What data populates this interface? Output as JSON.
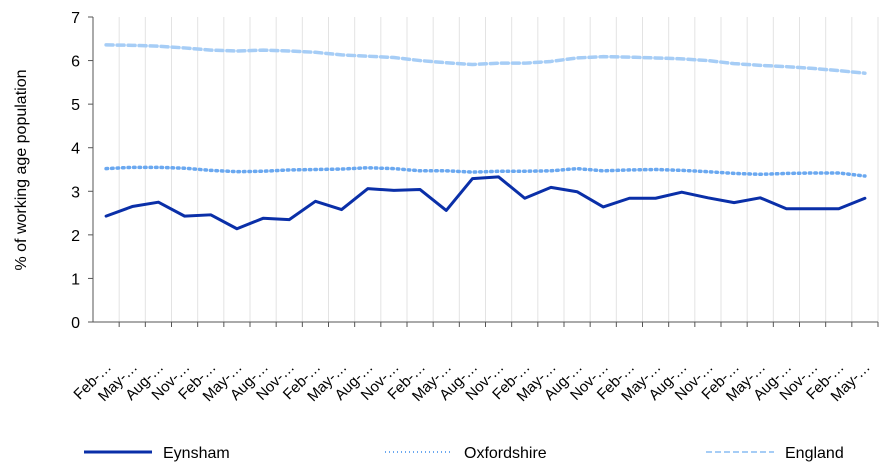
{
  "chart_data": {
    "type": "line",
    "ylabel": "% of working age population",
    "xlabel": "",
    "ylim": [
      0,
      7
    ],
    "yticks": [
      "0",
      "1",
      "2",
      "3",
      "4",
      "5",
      "6",
      "7"
    ],
    "grid": "vertical",
    "legend_position": "bottom",
    "categories": [
      "Feb-…",
      "May-…",
      "Aug-…",
      "Nov-…",
      "Feb-…",
      "May-…",
      "Aug-…",
      "Nov-…",
      "Feb-…",
      "May-…",
      "Aug-…",
      "Nov-…",
      "Feb-…",
      "May-…",
      "Aug-…",
      "Nov-…",
      "Feb-…",
      "May-…",
      "Aug-…",
      "Nov-…",
      "Feb-…",
      "May-…",
      "Aug-…",
      "Nov-…",
      "Feb-…",
      "May-…",
      "Aug-…",
      "Nov-…",
      "Feb-…",
      "May-…"
    ],
    "series": [
      {
        "name": "Eynsham",
        "color": "#0a2fa8",
        "style": "solid",
        "values": [
          2.43,
          2.65,
          2.75,
          2.43,
          2.46,
          2.14,
          2.38,
          2.35,
          2.77,
          2.58,
          3.06,
          3.02,
          3.04,
          2.56,
          3.29,
          3.33,
          2.84,
          3.09,
          2.99,
          2.64,
          2.84,
          2.84,
          2.98,
          2.85,
          2.74,
          2.85,
          2.6,
          2.6,
          2.6,
          2.84
        ]
      },
      {
        "name": "Oxfordshire",
        "color": "#6aa8f0",
        "style": "dotted",
        "values": [
          3.52,
          3.55,
          3.55,
          3.53,
          3.48,
          3.45,
          3.46,
          3.49,
          3.5,
          3.51,
          3.54,
          3.52,
          3.47,
          3.47,
          3.44,
          3.46,
          3.46,
          3.47,
          3.52,
          3.47,
          3.49,
          3.5,
          3.48,
          3.45,
          3.41,
          3.39,
          3.41,
          3.42,
          3.42,
          3.35
        ]
      },
      {
        "name": "England",
        "color": "#a6cdf6",
        "style": "dashed",
        "values": [
          6.36,
          6.35,
          6.33,
          6.29,
          6.24,
          6.22,
          6.24,
          6.22,
          6.19,
          6.13,
          6.1,
          6.07,
          6.0,
          5.95,
          5.91,
          5.94,
          5.94,
          5.98,
          6.06,
          6.09,
          6.08,
          6.06,
          6.04,
          6.0,
          5.93,
          5.89,
          5.86,
          5.82,
          5.77,
          5.71
        ]
      }
    ]
  }
}
